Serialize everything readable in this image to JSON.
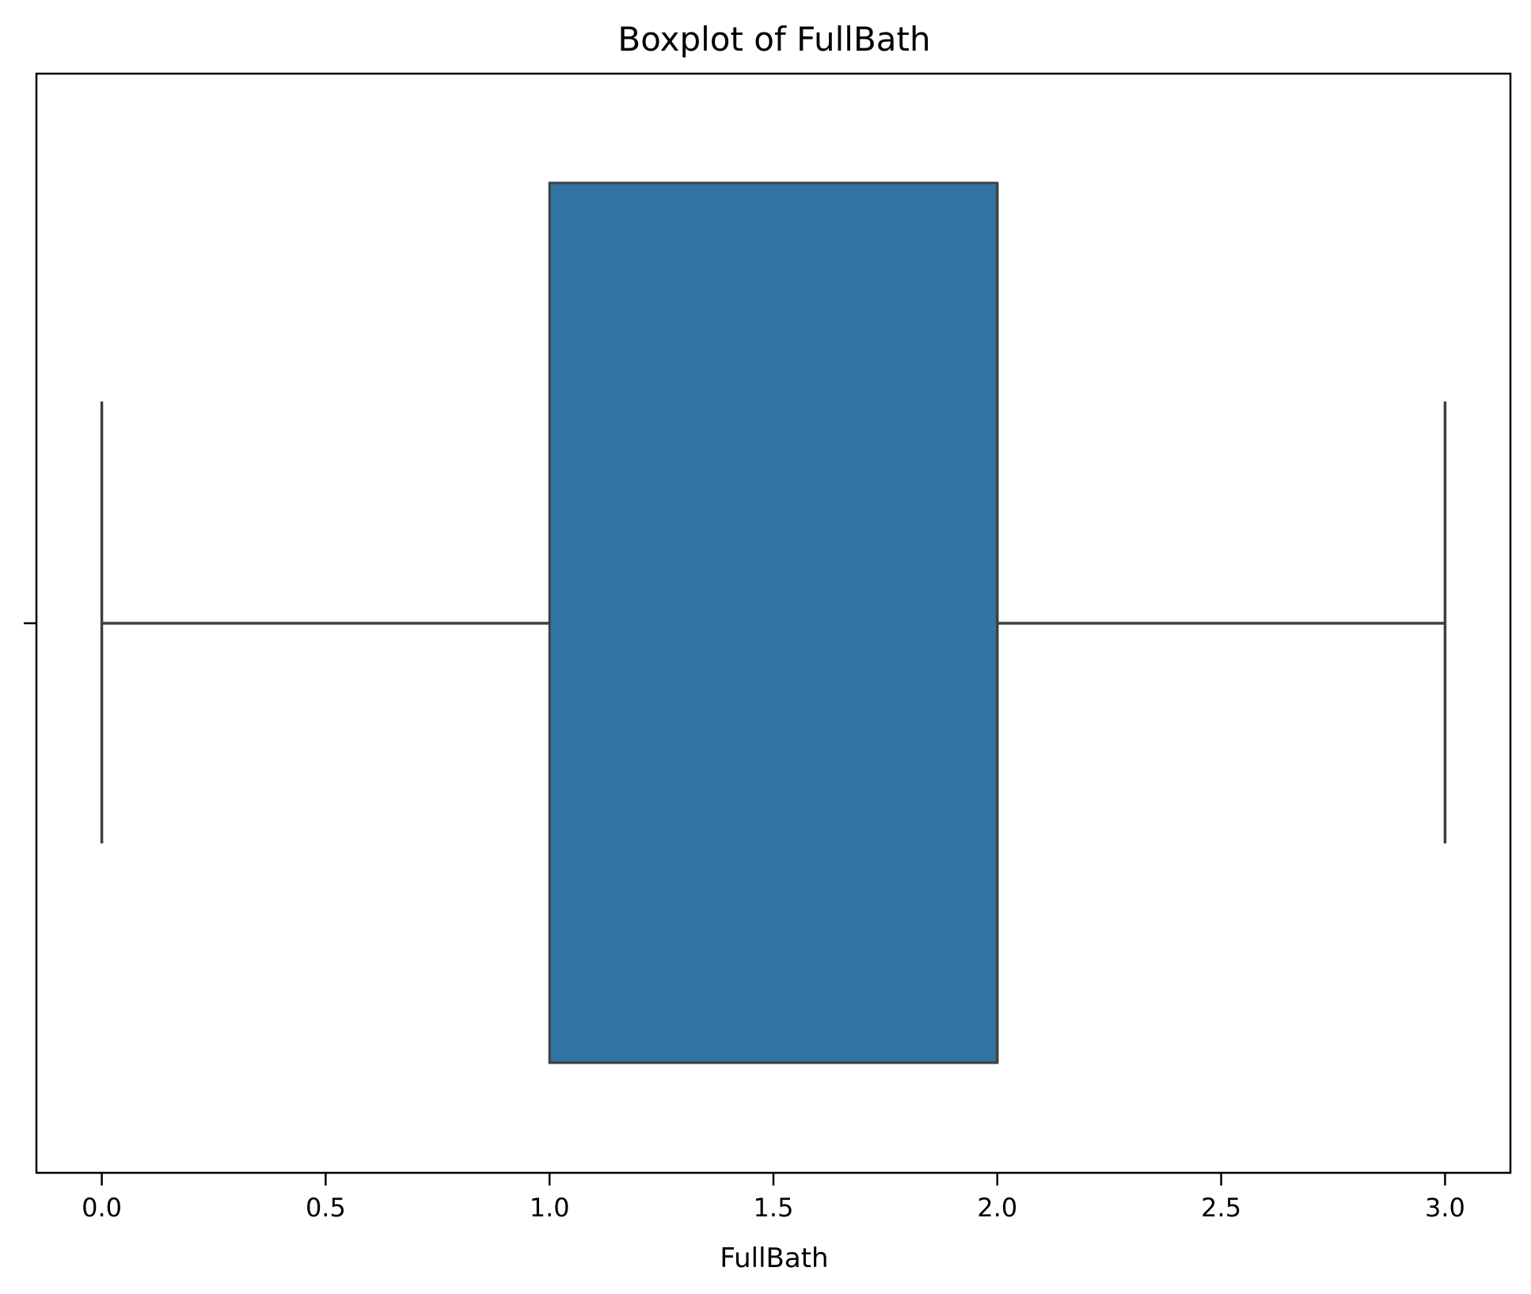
{
  "chart_data": {
    "type": "boxplot",
    "title": "Boxplot of FullBath",
    "xlabel": "FullBath",
    "ylabel": "",
    "xlim": [
      -0.146,
      3.146
    ],
    "xticks": [
      0.0,
      0.5,
      1.0,
      1.5,
      2.0,
      2.5,
      3.0
    ],
    "xtick_labels": [
      "0.0",
      "0.5",
      "1.0",
      "1.5",
      "2.0",
      "2.5",
      "3.0"
    ],
    "orientation": "horizontal",
    "grid": false,
    "box": {
      "min": 0.0,
      "q1": 1.0,
      "median": 2.0,
      "q3": 2.0,
      "max": 3.0,
      "color": "#3274a1",
      "edge_color": "#3f3f3f"
    }
  }
}
